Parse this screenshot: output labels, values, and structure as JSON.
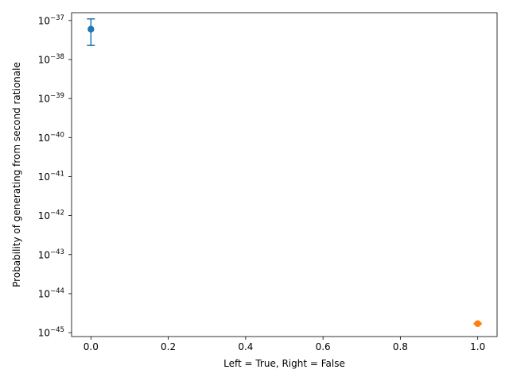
{
  "chart_data": {
    "type": "scatter",
    "title": "",
    "xlabel": "Left = True, Right = False",
    "ylabel": "Probability of generating from second rationale",
    "xscale": "linear",
    "yscale": "log",
    "xlim": [
      -0.05,
      1.05
    ],
    "ylim_log10": [
      -45.1,
      -36.8
    ],
    "xticks": [
      0.0,
      0.2,
      0.4,
      0.6,
      0.8,
      1.0
    ],
    "xtick_labels": [
      "0.0",
      "0.2",
      "0.4",
      "0.6",
      "0.8",
      "1.0"
    ],
    "yticks_log10": [
      -45,
      -44,
      -43,
      -42,
      -41,
      -40,
      -39,
      -38,
      -37
    ],
    "ytick_base": "10",
    "ytick_exponents": [
      "−45",
      "−44",
      "−43",
      "−42",
      "−41",
      "−40",
      "−39",
      "−38",
      "−37"
    ],
    "grid": false,
    "series": [
      {
        "color": "#1f77b4",
        "points": [
          {
            "x": 0.0,
            "y": 6e-38,
            "yerr_low": 2.3e-38,
            "yerr_high": 1.1e-37
          }
        ]
      },
      {
        "color": "#ff7f0e",
        "points": [
          {
            "x": 1.0,
            "y": 1.7e-45,
            "yerr_low": 1.65e-45,
            "yerr_high": 1.75e-45
          }
        ]
      }
    ]
  }
}
